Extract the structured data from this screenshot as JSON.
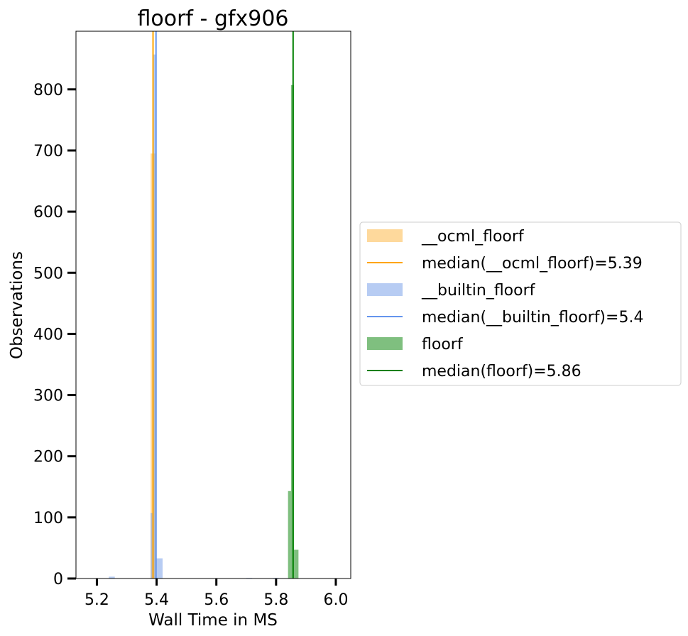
{
  "chart_data": {
    "type": "bar",
    "title": "floorf - gfx906",
    "xlabel": "Wall Time in MS",
    "ylabel": "Observations",
    "xlim": [
      5.13,
      6.05
    ],
    "ylim": [
      0,
      895
    ],
    "xticks": [
      5.2,
      5.4,
      5.6,
      5.8,
      6.0
    ],
    "xtick_labels": [
      "5.2",
      "5.4",
      "5.6",
      "5.8",
      "6.0"
    ],
    "yticks": [
      0,
      100,
      200,
      300,
      400,
      500,
      600,
      700,
      800
    ],
    "ytick_labels": [
      "0",
      "100",
      "200",
      "300",
      "400",
      "500",
      "600",
      "700",
      "800"
    ],
    "bin_width": 0.02,
    "legend_position": "center-right-outside",
    "series": [
      {
        "name": "__ocml_floorf",
        "color": "#fdb33a",
        "bins": [
          {
            "x0": 5.38,
            "x1": 5.4,
            "value": 695
          }
        ]
      },
      {
        "name": "__builtin_floorf",
        "color": "#6f9ae8",
        "bins": [
          {
            "x0": 5.24,
            "x1": 5.26,
            "value": 3
          },
          {
            "x0": 5.38,
            "x1": 5.39,
            "value": 107
          },
          {
            "x0": 5.39,
            "x1": 5.4,
            "value": 857
          },
          {
            "x0": 5.4,
            "x1": 5.42,
            "value": 33
          },
          {
            "x0": 5.7,
            "x1": 5.72,
            "value": 1
          },
          {
            "x0": 5.79,
            "x1": 5.81,
            "value": 1
          }
        ]
      },
      {
        "name": "floorf",
        "color": "#008000",
        "bins": [
          {
            "x0": 5.84,
            "x1": 5.85,
            "value": 143
          },
          {
            "x0": 5.85,
            "x1": 5.86,
            "value": 807
          },
          {
            "x0": 5.86,
            "x1": 5.875,
            "value": 47
          }
        ]
      }
    ],
    "medians": [
      {
        "name": "median(__ocml_floorf)=5.39",
        "x": 5.388,
        "color": "#ffa500"
      },
      {
        "name": "median(__builtin_floorf)=5.4",
        "x": 5.398,
        "color": "#6495ed"
      },
      {
        "name": "median(floorf)=5.86",
        "x": 5.857,
        "color": "#008000"
      }
    ],
    "legend": [
      {
        "label": "__ocml_floorf",
        "kind": "patch",
        "color": "#fdb33a"
      },
      {
        "label": "median(__ocml_floorf)=5.39",
        "kind": "line",
        "color": "#ffa500"
      },
      {
        "label": "__builtin_floorf",
        "kind": "patch",
        "color": "#6f9ae8"
      },
      {
        "label": "median(__builtin_floorf)=5.4",
        "kind": "line",
        "color": "#6495ed"
      },
      {
        "label": "floorf",
        "kind": "patch",
        "color": "#008000"
      },
      {
        "label": "median(floorf)=5.86",
        "kind": "line",
        "color": "#008000"
      }
    ]
  }
}
